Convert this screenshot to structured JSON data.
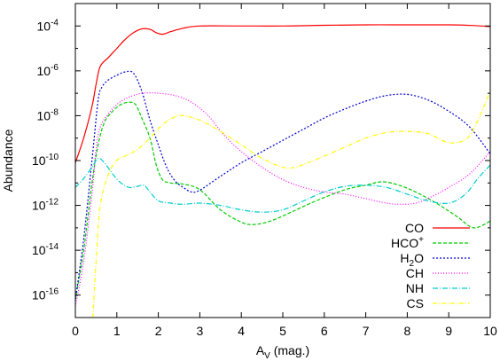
{
  "chart_data": {
    "type": "line",
    "xlabel": {
      "base": "A",
      "sub": "V",
      "rest": " (mag.)"
    },
    "ylabel": "Abundance",
    "xlim": [
      0,
      10
    ],
    "ylim_log10": [
      -17,
      -3
    ],
    "y_scale": "log",
    "x_ticks": [
      {
        "value": 0,
        "label": "0"
      },
      {
        "value": 1,
        "label": "1"
      },
      {
        "value": 2,
        "label": "2"
      },
      {
        "value": 3,
        "label": "3"
      },
      {
        "value": 4,
        "label": "4"
      },
      {
        "value": 5,
        "label": "5"
      },
      {
        "value": 6,
        "label": "6"
      },
      {
        "value": 7,
        "label": "7"
      },
      {
        "value": 8,
        "label": "8"
      },
      {
        "value": 9,
        "label": "9"
      },
      {
        "value": 10,
        "label": "10"
      }
    ],
    "y_ticks": [
      {
        "exp": -16,
        "base": "10",
        "sup": "-16"
      },
      {
        "exp": -14,
        "base": "10",
        "sup": "-14"
      },
      {
        "exp": -12,
        "base": "10",
        "sup": "-12"
      },
      {
        "exp": -10,
        "base": "10",
        "sup": "-10"
      },
      {
        "exp": -8,
        "base": "10",
        "sup": "-8"
      },
      {
        "exp": -6,
        "base": "10",
        "sup": "-6"
      },
      {
        "exp": -4,
        "base": "10",
        "sup": "-4"
      }
    ],
    "grid": false,
    "legend_position": "bottom-right",
    "series": [
      {
        "name": "CO",
        "legend": {
          "base": "CO"
        },
        "color": "#ff0000",
        "dash": "",
        "points": [
          [
            0,
            -10.1
          ],
          [
            0.2,
            -9.0
          ],
          [
            0.4,
            -7.6
          ],
          [
            0.5,
            -6.6
          ],
          [
            0.6,
            -5.8
          ],
          [
            0.8,
            -5.4
          ],
          [
            1.0,
            -5.0
          ],
          [
            1.2,
            -4.6
          ],
          [
            1.4,
            -4.3
          ],
          [
            1.6,
            -4.13
          ],
          [
            1.8,
            -4.15
          ],
          [
            1.95,
            -4.3
          ],
          [
            2.1,
            -4.37
          ],
          [
            2.3,
            -4.25
          ],
          [
            2.6,
            -4.1
          ],
          [
            3.0,
            -4.0
          ],
          [
            4.0,
            -4.0
          ],
          [
            5.0,
            -4.0
          ],
          [
            6.0,
            -3.97
          ],
          [
            7.0,
            -3.95
          ],
          [
            8.0,
            -3.95
          ],
          [
            9.0,
            -3.95
          ],
          [
            9.6,
            -3.98
          ],
          [
            10.0,
            -4.03
          ]
        ]
      },
      {
        "name": "HCO+",
        "legend": {
          "base": "HCO",
          "sup": "+"
        },
        "color": "#00cc00",
        "dash": "4,2",
        "points": [
          [
            0,
            -16.2
          ],
          [
            0.2,
            -14.0
          ],
          [
            0.4,
            -11.0
          ],
          [
            0.55,
            -9.3
          ],
          [
            0.7,
            -8.3
          ],
          [
            0.9,
            -7.8
          ],
          [
            1.1,
            -7.5
          ],
          [
            1.3,
            -7.4
          ],
          [
            1.45,
            -7.5
          ],
          [
            1.6,
            -8.1
          ],
          [
            1.8,
            -9.0
          ],
          [
            1.95,
            -10.2
          ],
          [
            2.1,
            -10.85
          ],
          [
            2.3,
            -11.0
          ],
          [
            2.6,
            -11.05
          ],
          [
            3.0,
            -11.3
          ],
          [
            3.5,
            -12.2
          ],
          [
            4.0,
            -12.75
          ],
          [
            4.3,
            -12.85
          ],
          [
            4.7,
            -12.7
          ],
          [
            5.2,
            -12.3
          ],
          [
            5.8,
            -11.8
          ],
          [
            6.5,
            -11.3
          ],
          [
            7.0,
            -11.1
          ],
          [
            7.4,
            -10.95
          ],
          [
            7.8,
            -11.1
          ],
          [
            8.2,
            -11.4
          ],
          [
            8.7,
            -11.9
          ],
          [
            9.2,
            -12.5
          ],
          [
            9.6,
            -13.0
          ],
          [
            10.0,
            -12.7
          ]
        ]
      },
      {
        "name": "H2O",
        "legend": {
          "base": "H",
          "sub": "2",
          "rest": "O"
        },
        "color": "#0000cc",
        "dash": "2,2",
        "points": [
          [
            0,
            -16.2
          ],
          [
            0.2,
            -13.5
          ],
          [
            0.4,
            -10.0
          ],
          [
            0.55,
            -7.3
          ],
          [
            0.65,
            -6.7
          ],
          [
            0.8,
            -6.4
          ],
          [
            1.0,
            -6.2
          ],
          [
            1.2,
            -6.05
          ],
          [
            1.4,
            -6.1
          ],
          [
            1.6,
            -6.9
          ],
          [
            1.8,
            -8.2
          ],
          [
            2.0,
            -9.3
          ],
          [
            2.2,
            -10.3
          ],
          [
            2.4,
            -10.9
          ],
          [
            2.6,
            -11.2
          ],
          [
            2.8,
            -11.4
          ],
          [
            3.0,
            -11.32
          ],
          [
            3.5,
            -10.7
          ],
          [
            4.0,
            -10.1
          ],
          [
            4.5,
            -9.6
          ],
          [
            5.0,
            -9.1
          ],
          [
            5.5,
            -8.6
          ],
          [
            6.0,
            -8.1
          ],
          [
            6.5,
            -7.7
          ],
          [
            7.0,
            -7.35
          ],
          [
            7.5,
            -7.1
          ],
          [
            8.0,
            -7.05
          ],
          [
            8.5,
            -7.3
          ],
          [
            9.0,
            -7.8
          ],
          [
            9.5,
            -8.5
          ],
          [
            10.0,
            -9.7
          ]
        ]
      },
      {
        "name": "CH",
        "legend": {
          "base": "CH"
        },
        "color": "#ff00ff",
        "dash": "1,2",
        "points": [
          [
            0,
            -16.5
          ],
          [
            0.2,
            -14.5
          ],
          [
            0.4,
            -11.5
          ],
          [
            0.5,
            -9.5
          ],
          [
            0.6,
            -8.5
          ],
          [
            0.8,
            -7.9
          ],
          [
            1.0,
            -7.5
          ],
          [
            1.2,
            -7.25
          ],
          [
            1.4,
            -7.1
          ],
          [
            1.6,
            -7.0
          ],
          [
            1.8,
            -6.98
          ],
          [
            2.0,
            -7.0
          ],
          [
            2.4,
            -7.1
          ],
          [
            2.8,
            -7.4
          ],
          [
            3.2,
            -8.0
          ],
          [
            3.6,
            -8.9
          ],
          [
            4.0,
            -9.6
          ],
          [
            4.5,
            -10.3
          ],
          [
            5.0,
            -10.85
          ],
          [
            5.5,
            -11.2
          ],
          [
            6.0,
            -11.4
          ],
          [
            6.5,
            -11.5
          ],
          [
            7.0,
            -11.7
          ],
          [
            7.5,
            -11.9
          ],
          [
            7.8,
            -11.95
          ],
          [
            8.2,
            -11.9
          ],
          [
            8.6,
            -11.6
          ],
          [
            9.0,
            -11.2
          ],
          [
            9.5,
            -10.6
          ],
          [
            10.0,
            -9.6
          ]
        ]
      },
      {
        "name": "NH",
        "legend": {
          "base": "NH"
        },
        "color": "#00cccc",
        "dash": "6,2,1,2",
        "points": [
          [
            0,
            -11.2
          ],
          [
            0.2,
            -10.8
          ],
          [
            0.4,
            -10.3
          ],
          [
            0.55,
            -9.9
          ],
          [
            0.7,
            -10.1
          ],
          [
            0.9,
            -10.6
          ],
          [
            1.1,
            -11.0
          ],
          [
            1.3,
            -11.2
          ],
          [
            1.5,
            -11.15
          ],
          [
            1.65,
            -11.1
          ],
          [
            1.8,
            -11.4
          ],
          [
            2.0,
            -11.8
          ],
          [
            2.3,
            -11.9
          ],
          [
            2.6,
            -11.95
          ],
          [
            3.0,
            -11.9
          ],
          [
            3.5,
            -12.0
          ],
          [
            4.0,
            -12.2
          ],
          [
            4.5,
            -12.3
          ],
          [
            5.0,
            -12.2
          ],
          [
            5.5,
            -11.8
          ],
          [
            6.0,
            -11.4
          ],
          [
            6.5,
            -11.15
          ],
          [
            7.0,
            -11.1
          ],
          [
            7.5,
            -11.2
          ],
          [
            8.0,
            -11.5
          ],
          [
            8.5,
            -11.8
          ],
          [
            9.0,
            -11.9
          ],
          [
            9.4,
            -11.5
          ],
          [
            9.7,
            -10.8
          ],
          [
            10.0,
            -10.2
          ]
        ]
      },
      {
        "name": "CS",
        "legend": {
          "base": "CS"
        },
        "color": "#ffff00",
        "dash": "5,2,1,2",
        "points": [
          [
            0.42,
            -17
          ],
          [
            0.5,
            -14.5
          ],
          [
            0.6,
            -12.0
          ],
          [
            0.8,
            -10.6
          ],
          [
            1.0,
            -10.0
          ],
          [
            1.2,
            -9.8
          ],
          [
            1.5,
            -9.5
          ],
          [
            1.8,
            -9.0
          ],
          [
            2.1,
            -8.4
          ],
          [
            2.4,
            -8.05
          ],
          [
            2.6,
            -8.0
          ],
          [
            3.0,
            -8.2
          ],
          [
            3.5,
            -8.7
          ],
          [
            4.0,
            -9.3
          ],
          [
            4.5,
            -9.9
          ],
          [
            5.0,
            -10.3
          ],
          [
            5.3,
            -10.3
          ],
          [
            5.6,
            -10.1
          ],
          [
            6.0,
            -9.8
          ],
          [
            6.5,
            -9.4
          ],
          [
            7.0,
            -9.0
          ],
          [
            7.5,
            -8.75
          ],
          [
            8.0,
            -8.7
          ],
          [
            8.5,
            -8.8
          ],
          [
            8.9,
            -9.15
          ],
          [
            9.2,
            -9.2
          ],
          [
            9.5,
            -8.9
          ],
          [
            9.8,
            -7.8
          ],
          [
            10.0,
            -6.9
          ]
        ]
      }
    ]
  }
}
